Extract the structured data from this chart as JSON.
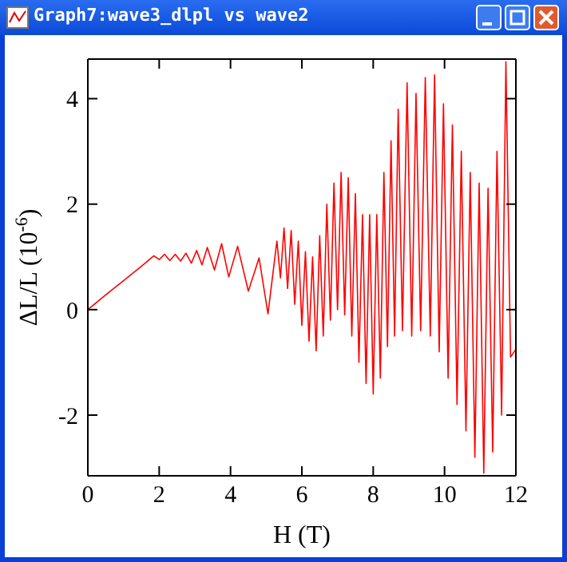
{
  "chart_data": {
    "type": "line",
    "title": "Graph7:wave3_dlpl vs wave2",
    "xlabel": "H (T)",
    "ylabel": "ΔL/L (10$^{-6}$)",
    "xlim": [
      0,
      12
    ],
    "xticks": [
      0,
      2,
      4,
      6,
      8,
      10,
      12
    ],
    "ylim": [
      -3.15,
      4.75
    ],
    "yticks": [
      -2,
      0,
      2,
      4
    ],
    "series": [
      {
        "color": "#ff0000",
        "x": [
          0,
          0.5,
          1,
          1.5,
          1.85,
          2.0,
          2.15,
          2.3,
          2.45,
          2.6,
          2.75,
          2.9,
          3.05,
          3.2,
          3.35,
          3.55,
          3.75,
          3.95,
          4.2,
          4.5,
          4.8,
          5.05,
          5.3,
          5.4,
          5.5,
          5.6,
          5.7,
          5.8,
          5.9,
          6.0,
          6.1,
          6.2,
          6.3,
          6.4,
          6.5,
          6.6,
          6.7,
          6.8,
          6.9,
          7.0,
          7.1,
          7.2,
          7.3,
          7.4,
          7.5,
          7.6,
          7.7,
          7.8,
          7.9,
          8.0,
          8.1,
          8.2,
          8.3,
          8.4,
          8.5,
          8.6,
          8.7,
          8.82,
          8.95,
          9.08,
          9.2,
          9.33,
          9.46,
          9.6,
          9.72,
          9.85,
          9.97,
          10.1,
          10.22,
          10.35,
          10.47,
          10.6,
          10.72,
          10.85,
          10.97,
          11.1,
          11.22,
          11.35,
          11.47,
          11.6,
          11.72,
          11.85,
          12
        ],
        "values": [
          0,
          0.28,
          0.55,
          0.82,
          1.02,
          0.95,
          1.05,
          0.93,
          1.05,
          0.92,
          1.07,
          0.88,
          1.12,
          0.85,
          1.18,
          0.75,
          1.25,
          0.62,
          1.2,
          0.35,
          0.98,
          -0.08,
          1.3,
          0.6,
          1.55,
          0.4,
          1.5,
          0.1,
          1.3,
          -0.3,
          1.1,
          -0.6,
          1.0,
          -0.78,
          1.4,
          -0.5,
          2.0,
          -0.2,
          2.4,
          0.0,
          2.6,
          -0.1,
          2.5,
          -0.5,
          2.2,
          -1.0,
          1.8,
          -1.4,
          1.8,
          -1.6,
          1.8,
          -1.3,
          2.6,
          -0.7,
          3.2,
          -0.5,
          3.8,
          -0.4,
          4.3,
          -0.5,
          4.1,
          -0.4,
          4.4,
          -0.5,
          4.45,
          -0.8,
          3.9,
          -1.3,
          3.5,
          -1.8,
          3.0,
          -2.3,
          2.6,
          -2.8,
          2.4,
          -3.1,
          2.3,
          -2.7,
          3.0,
          -2.0,
          4.7,
          -0.9,
          -0.75
        ]
      }
    ]
  }
}
